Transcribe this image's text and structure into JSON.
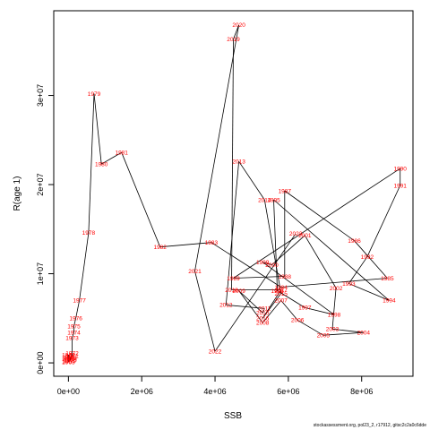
{
  "chart_data": {
    "type": "line",
    "xlabel": "SSB",
    "ylabel": "R(age 1)",
    "xlim": [
      -400000,
      9400000
    ],
    "ylim": [
      -1500000,
      39500000
    ],
    "x_ticks": [
      {
        "value": 0,
        "label": "0e+00"
      },
      {
        "value": 2000000,
        "label": "2e+06"
      },
      {
        "value": 4000000,
        "label": "4e+06"
      },
      {
        "value": 6000000,
        "label": "6e+06"
      },
      {
        "value": 8000000,
        "label": "8e+06"
      }
    ],
    "y_ticks": [
      {
        "value": 0,
        "label": "0e+00"
      },
      {
        "value": 10000000,
        "label": "1e+07"
      },
      {
        "value": 20000000,
        "label": "2e+07"
      },
      {
        "value": 30000000,
        "label": "3e+07"
      }
    ],
    "points": [
      {
        "year": "1963",
        "x": 0,
        "y": 100000
      },
      {
        "year": "1964",
        "x": 0,
        "y": 200000
      },
      {
        "year": "1965",
        "x": 0,
        "y": 500000
      },
      {
        "year": "1966",
        "x": 0,
        "y": 700000
      },
      {
        "year": "1967",
        "x": 0,
        "y": 900000
      },
      {
        "year": "1968",
        "x": 50000,
        "y": 600000
      },
      {
        "year": "1969",
        "x": 50000,
        "y": 400000
      },
      {
        "year": "1970",
        "x": 50000,
        "y": 300000
      },
      {
        "year": "1971",
        "x": 100000,
        "y": 800000
      },
      {
        "year": "1972",
        "x": 100000,
        "y": 1100000
      },
      {
        "year": "1973",
        "x": 100000,
        "y": 2800000
      },
      {
        "year": "1974",
        "x": 150000,
        "y": 3400000
      },
      {
        "year": "1975",
        "x": 150000,
        "y": 4100000
      },
      {
        "year": "1976",
        "x": 200000,
        "y": 5000000
      },
      {
        "year": "1977",
        "x": 300000,
        "y": 7000000
      },
      {
        "year": "1978",
        "x": 550000,
        "y": 14600000
      },
      {
        "year": "1979",
        "x": 700000,
        "y": 30200000
      },
      {
        "year": "1980",
        "x": 900000,
        "y": 22300000
      },
      {
        "year": "1981",
        "x": 1450000,
        "y": 23600000
      },
      {
        "year": "1982",
        "x": 2500000,
        "y": 13000000
      },
      {
        "year": "1983",
        "x": 3900000,
        "y": 13500000
      },
      {
        "year": "1984",
        "x": 5800000,
        "y": 8500000
      },
      {
        "year": "1985",
        "x": 8700000,
        "y": 9500000
      },
      {
        "year": "1986",
        "x": 7800000,
        "y": 13700000
      },
      {
        "year": "1987",
        "x": 5900000,
        "y": 19300000
      },
      {
        "year": "1988",
        "x": 5900000,
        "y": 9700000
      },
      {
        "year": "1989",
        "x": 4500000,
        "y": 9500000
      },
      {
        "year": "1990",
        "x": 9050000,
        "y": 21800000
      },
      {
        "year": "1991",
        "x": 9050000,
        "y": 19900000
      },
      {
        "year": "1992",
        "x": 8150000,
        "y": 11900000
      },
      {
        "year": "1993",
        "x": 7650000,
        "y": 8900000
      },
      {
        "year": "1994",
        "x": 8750000,
        "y": 7000000
      },
      {
        "year": "1995",
        "x": 5600000,
        "y": 18300000
      },
      {
        "year": "1996",
        "x": 5700000,
        "y": 8100000
      },
      {
        "year": "1997",
        "x": 6450000,
        "y": 6200000
      },
      {
        "year": "1998",
        "x": 7250000,
        "y": 5400000
      },
      {
        "year": "1999",
        "x": 5300000,
        "y": 11300000
      },
      {
        "year": "2000",
        "x": 5550000,
        "y": 11000000
      },
      {
        "year": "2001",
        "x": 6450000,
        "y": 14300000
      },
      {
        "year": "2002",
        "x": 7300000,
        "y": 8400000
      },
      {
        "year": "2003",
        "x": 7200000,
        "y": 3800000
      },
      {
        "year": "2004",
        "x": 8050000,
        "y": 3400000
      },
      {
        "year": "2005",
        "x": 6950000,
        "y": 3100000
      },
      {
        "year": "2006",
        "x": 6250000,
        "y": 4800000
      },
      {
        "year": "2007",
        "x": 5800000,
        "y": 7000000
      },
      {
        "year": "2008",
        "x": 5300000,
        "y": 4500000
      },
      {
        "year": "2009",
        "x": 4650000,
        "y": 8100000
      },
      {
        "year": "2010",
        "x": 5300000,
        "y": 5600000
      },
      {
        "year": "2011",
        "x": 5350000,
        "y": 6100000
      },
      {
        "year": "2012",
        "x": 4300000,
        "y": 6500000
      },
      {
        "year": "2013",
        "x": 4650000,
        "y": 22600000
      },
      {
        "year": "2014",
        "x": 5350000,
        "y": 18300000
      },
      {
        "year": "2015",
        "x": 5800000,
        "y": 7800000
      },
      {
        "year": "2016",
        "x": 5300000,
        "y": 5000000
      },
      {
        "year": "2017",
        "x": 5800000,
        "y": 8200000
      },
      {
        "year": "2018",
        "x": 4450000,
        "y": 8200000
      },
      {
        "year": "2019",
        "x": 4500000,
        "y": 36300000
      },
      {
        "year": "2020",
        "x": 4650000,
        "y": 37900000
      },
      {
        "year": "2021",
        "x": 3450000,
        "y": 10300000
      },
      {
        "year": "2022",
        "x": 4000000,
        "y": 1300000
      },
      {
        "year": "2023",
        "x": 6200000,
        "y": 14500000
      }
    ]
  },
  "caption": "stockassessment.org, pol23_2, r17912, gitsc2c2a0c6dde"
}
